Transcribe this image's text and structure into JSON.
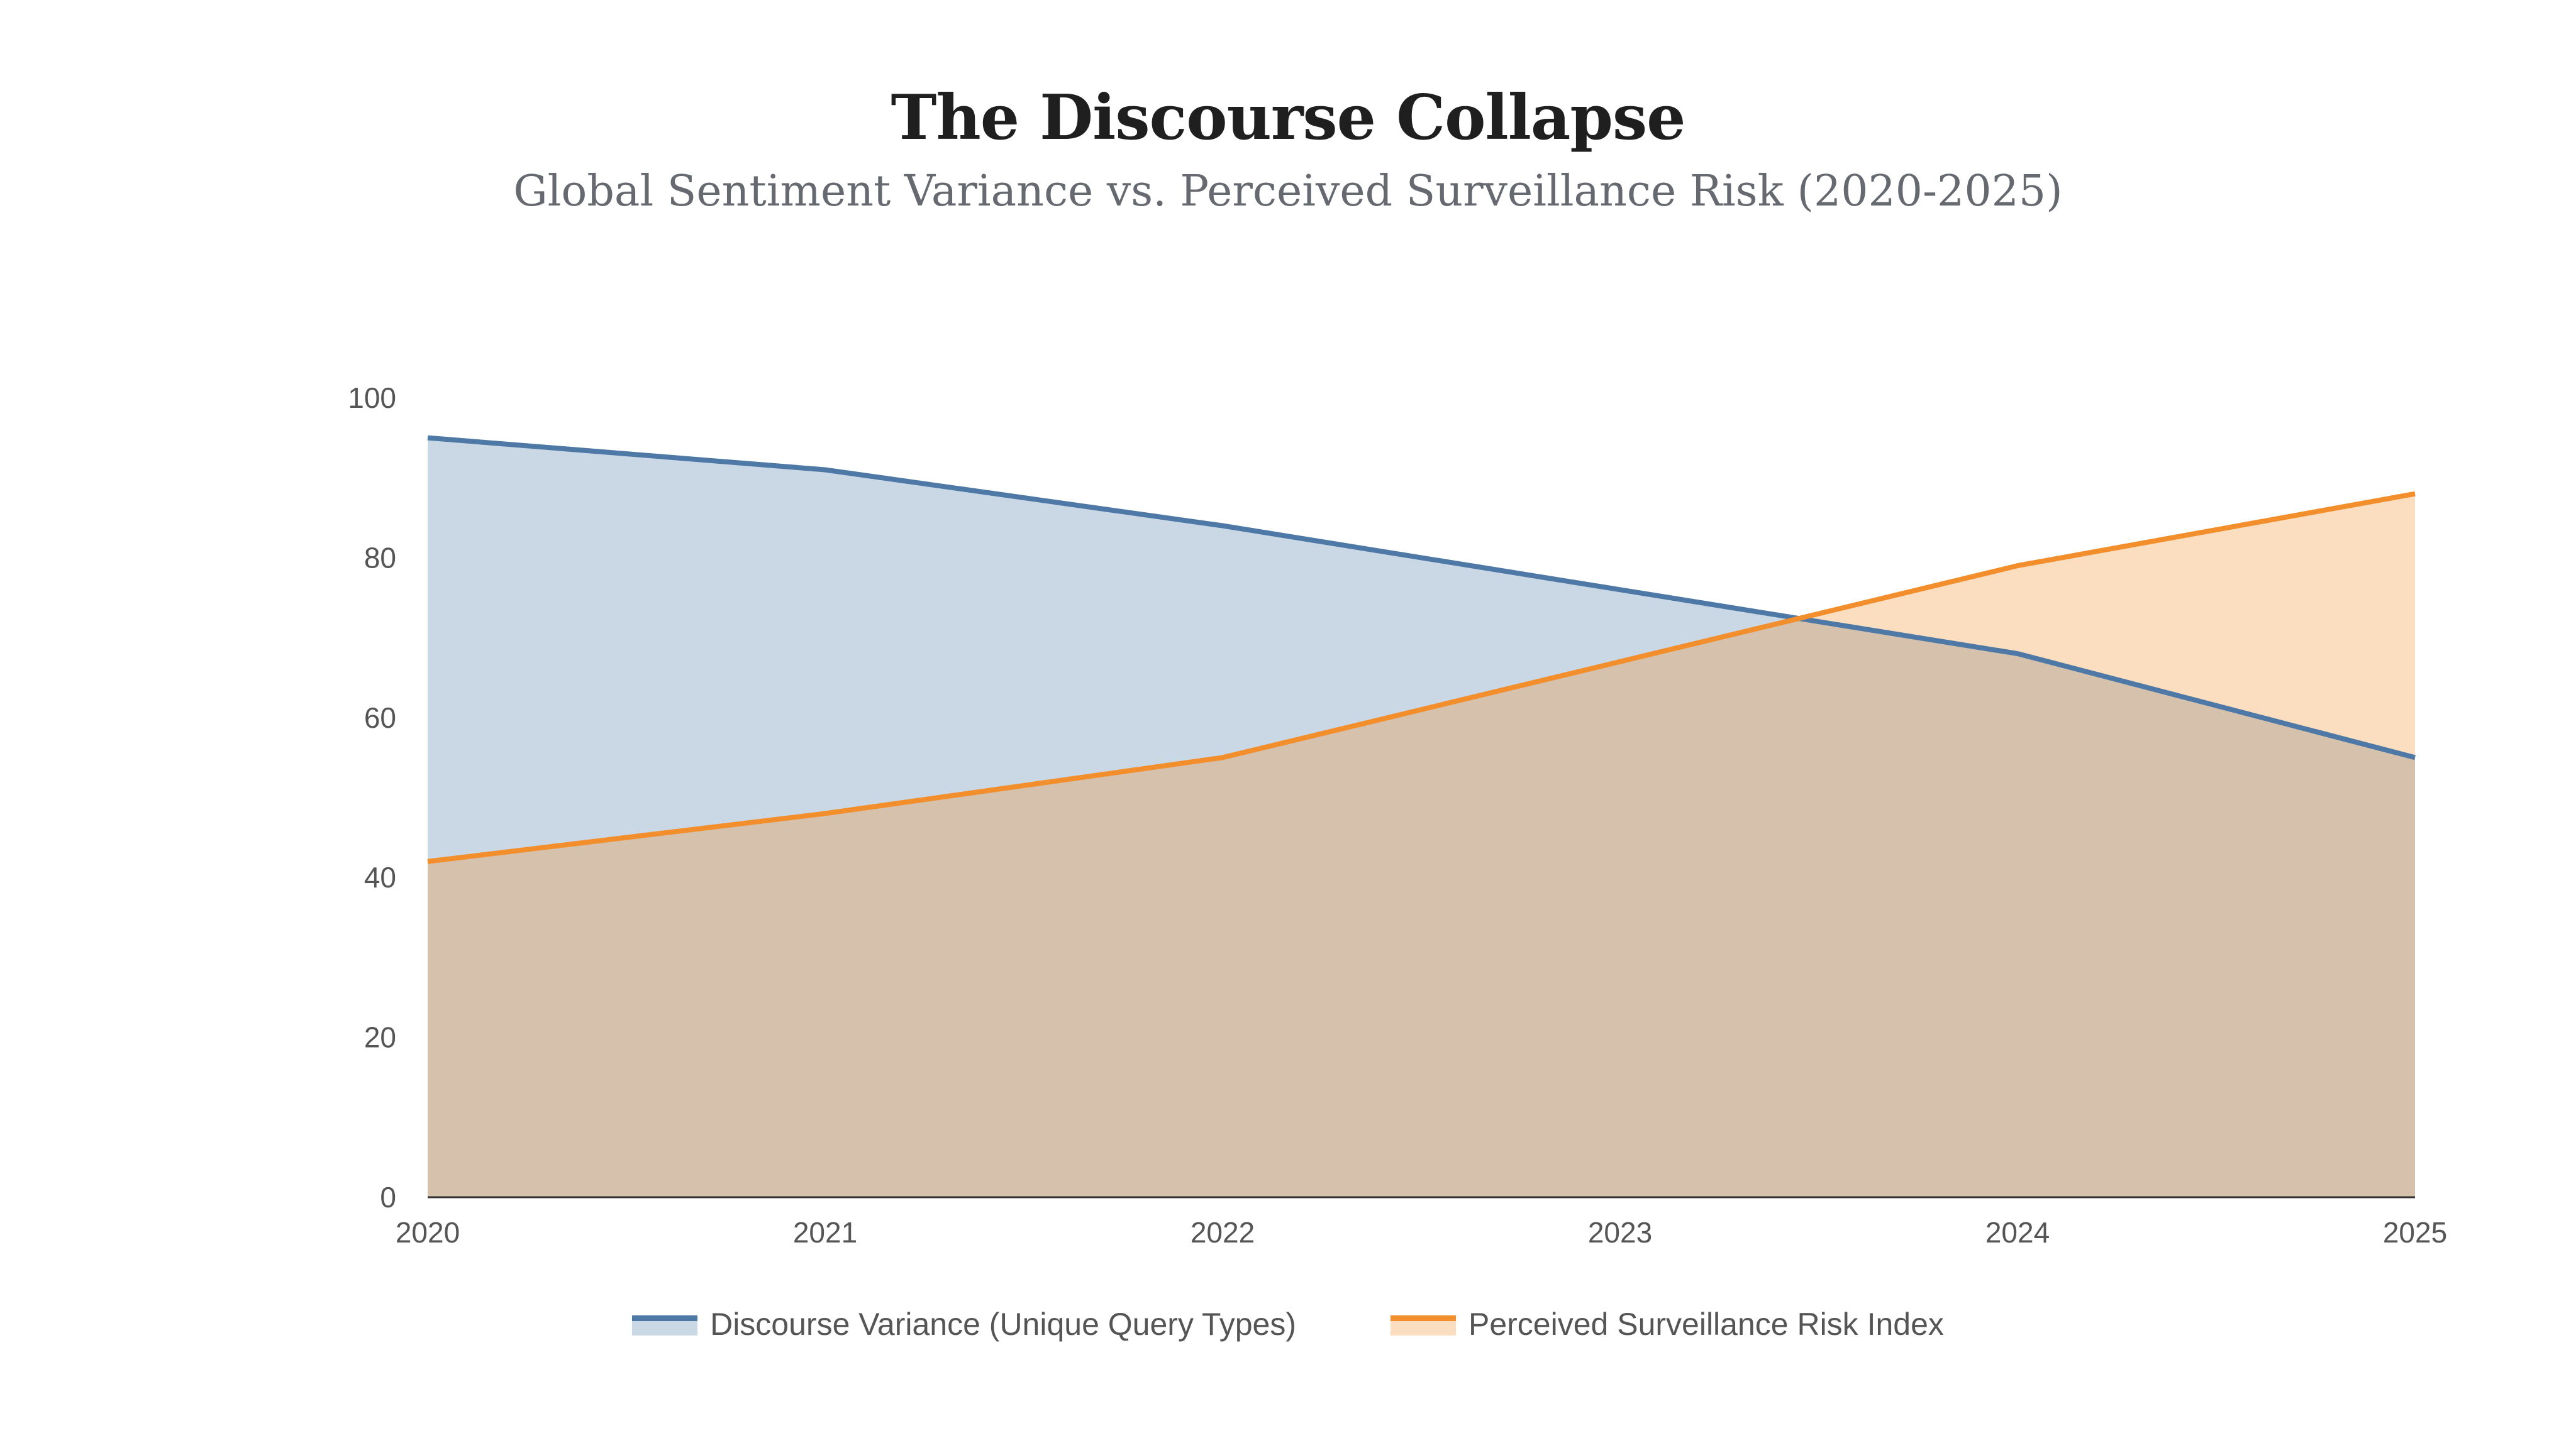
{
  "chart_data": {
    "type": "area",
    "title": "The Discourse Collapse",
    "subtitle": "Global Sentiment Variance vs. Perceived Surveillance Risk (2020-2025)",
    "x": [
      "2020",
      "2021",
      "2022",
      "2023",
      "2024",
      "2025"
    ],
    "xlabel": "",
    "ylabel": "",
    "ylim": [
      0,
      100
    ],
    "yticks": [
      "0",
      "20",
      "40",
      "60",
      "80",
      "100"
    ],
    "grid": false,
    "legend_position": "bottom",
    "series": [
      {
        "name": "Discourse Variance (Unique Query Types)",
        "values": [
          95,
          91,
          84,
          76,
          68,
          55
        ],
        "line_color": "#4e79a7",
        "fill_color": "#4e79a7",
        "fill_opacity": 0.3
      },
      {
        "name": "Perceived Surveillance Risk Index",
        "values": [
          42,
          48,
          55,
          67,
          79,
          88
        ],
        "line_color": "#f28e2b",
        "fill_color": "#f28e2b",
        "fill_opacity": 0.3
      }
    ]
  }
}
